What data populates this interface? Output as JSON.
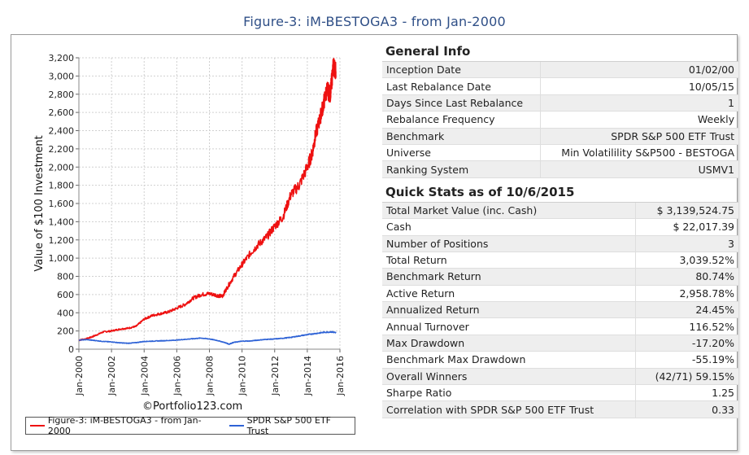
{
  "figure_title": "Figure-3: iM-BESTOGA3 - from Jan-2000",
  "copyright": "©Portfolio123.com",
  "colors": {
    "strategy": "#ee1111",
    "benchmark": "#2f63d6",
    "link": "#2a4a8e",
    "negative": "#e02020"
  },
  "chart_data": {
    "type": "line",
    "ylabel": "Value of $100 Investment",
    "xlabel": "",
    "y_ticks": [
      "0",
      "200",
      "400",
      "600",
      "800",
      "1,000",
      "1,200",
      "1,400",
      "1,600",
      "1,800",
      "2,000",
      "2,200",
      "2,400",
      "2,600",
      "2,800",
      "3,000",
      "3,200"
    ],
    "x_ticks": [
      "Jan-2000",
      "Jan-2002",
      "Jan-2004",
      "Jan-2006",
      "Jan-2008",
      "Jan-2010",
      "Jan-2012",
      "Jan-2014",
      "Jan-2016"
    ],
    "xlim": [
      2000,
      2016
    ],
    "ylim": [
      0,
      3200
    ],
    "grid": true,
    "legend_position": "bottom",
    "series": [
      {
        "name": "Figure-3: iM-BESTOGA3 - from Jan-2000",
        "x": [
          2000.0,
          2000.5,
          2001.0,
          2001.5,
          2002.0,
          2002.5,
          2003.0,
          2003.5,
          2004.0,
          2004.5,
          2005.0,
          2005.5,
          2006.0,
          2006.5,
          2007.0,
          2007.5,
          2008.0,
          2008.5,
          2008.8,
          2009.0,
          2009.5,
          2010.0,
          2010.5,
          2011.0,
          2011.5,
          2012.0,
          2012.5,
          2013.0,
          2013.5,
          2014.0,
          2014.3,
          2014.5,
          2014.8,
          2015.0,
          2015.2,
          2015.4,
          2015.5,
          2015.6,
          2015.75
        ],
        "values": [
          100,
          115,
          150,
          190,
          200,
          220,
          230,
          250,
          330,
          370,
          390,
          410,
          450,
          490,
          560,
          600,
          610,
          590,
          580,
          650,
          800,
          930,
          1050,
          1150,
          1230,
          1350,
          1450,
          1700,
          1800,
          2000,
          2150,
          2350,
          2550,
          2700,
          2850,
          2800,
          2950,
          3120,
          3050
        ]
      },
      {
        "name": "SPDR S&P 500 ETF Trust",
        "x": [
          2000.0,
          2000.5,
          2001.0,
          2001.5,
          2002.0,
          2002.5,
          2003.0,
          2003.5,
          2004.0,
          2004.5,
          2005.0,
          2005.5,
          2006.0,
          2006.5,
          2007.0,
          2007.5,
          2008.0,
          2008.5,
          2009.0,
          2009.2,
          2009.5,
          2010.0,
          2010.5,
          2011.0,
          2011.5,
          2012.0,
          2012.5,
          2013.0,
          2013.5,
          2014.0,
          2014.5,
          2015.0,
          2015.5,
          2015.75
        ],
        "values": [
          100,
          105,
          95,
          85,
          80,
          70,
          65,
          72,
          85,
          88,
          92,
          95,
          100,
          108,
          115,
          122,
          112,
          95,
          70,
          55,
          75,
          88,
          90,
          100,
          108,
          112,
          120,
          130,
          145,
          160,
          172,
          185,
          190,
          180
        ]
      }
    ]
  },
  "general_info": {
    "title": "General Info",
    "rows": [
      {
        "label": "Inception Date",
        "value": "01/02/00"
      },
      {
        "label": "Last Rebalance Date",
        "value": "10/05/15"
      },
      {
        "label": "Days Since Last Rebalance",
        "value": "1"
      },
      {
        "label": "Rebalance Frequency",
        "value": "Weekly"
      },
      {
        "label": "Benchmark",
        "value": "SPDR S&P 500 ETF Trust"
      },
      {
        "label": "Universe",
        "value": "Min Volatilility S&P500 - BESTOGA"
      },
      {
        "label": "Ranking System",
        "value": "USMV1"
      }
    ]
  },
  "quick_stats": {
    "title": "Quick Stats as of 10/6/2015",
    "rows": [
      {
        "label": "Total Market Value (inc. Cash)",
        "value": "$ 3,139,524.75"
      },
      {
        "label": "Cash",
        "value": "$ 22,017.39"
      },
      {
        "label": "Number of Positions",
        "value": "3"
      },
      {
        "label": "Total Return",
        "value": "3,039.52%"
      },
      {
        "label": "Benchmark Return",
        "value": "80.74%"
      },
      {
        "label": "Active Return",
        "value": "2,958.78%"
      },
      {
        "label": "Annualized Return",
        "value": "24.45%"
      },
      {
        "label": "Annual Turnover",
        "value": "116.52%"
      },
      {
        "label": "Max Drawdown",
        "value": "-17.20%"
      },
      {
        "label": "Benchmark Max Drawdown",
        "value": "-55.19%"
      },
      {
        "label": "Overall Winners",
        "value": "(42/71) 59.15%"
      },
      {
        "label": "Sharpe Ratio",
        "value": "1.25"
      },
      {
        "label": "Correlation with SPDR S&P 500 ETF Trust",
        "value": "0.33"
      }
    ]
  }
}
